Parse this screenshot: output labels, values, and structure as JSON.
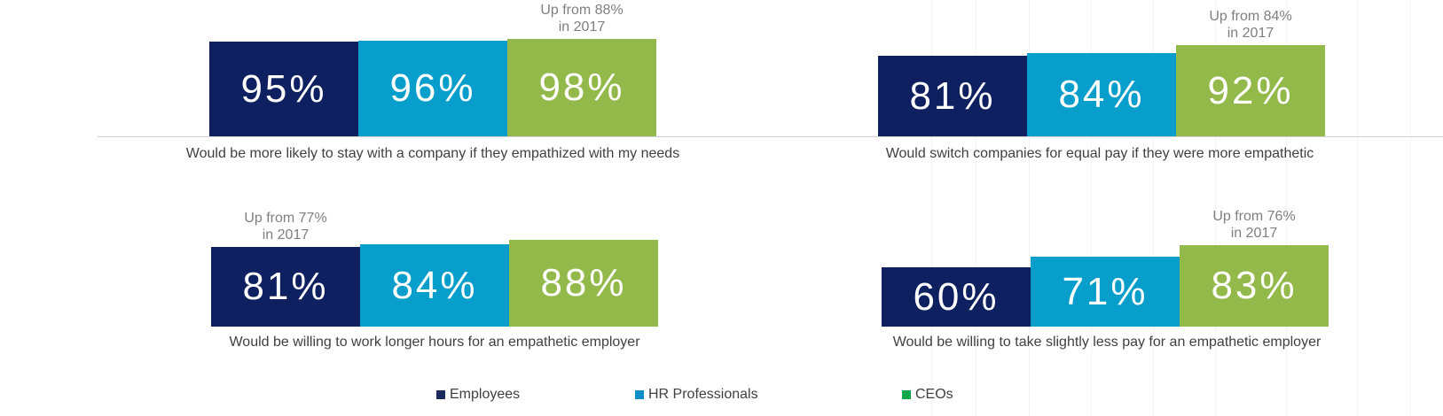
{
  "chart_data": [
    {
      "type": "bar",
      "caption": "Would be more likely to stay with a company if they empathized  with my needs",
      "categories": [
        "Employees",
        "HR Professionals",
        "CEOs"
      ],
      "values": [
        95,
        96,
        98
      ],
      "labels": [
        "95%",
        "96%",
        "98%"
      ],
      "annotation": {
        "bar": 2,
        "line1": "Up from 88%",
        "line2": "in 2017"
      }
    },
    {
      "type": "bar",
      "caption": "Would switch companies for equal pay if they were more  empathetic",
      "categories": [
        "Employees",
        "HR Professionals",
        "CEOs"
      ],
      "values": [
        81,
        84,
        92
      ],
      "labels": [
        "81%",
        "84%",
        "92%"
      ],
      "annotation": {
        "bar": 2,
        "line1": "Up from 84%",
        "line2": "in 2017"
      }
    },
    {
      "type": "bar",
      "caption": "Would be willing to work longer  hours for an empathetic employer",
      "categories": [
        "Employees",
        "HR Professionals",
        "CEOs"
      ],
      "values": [
        81,
        84,
        88
      ],
      "labels": [
        "81%",
        "84%",
        "88%"
      ],
      "annotation": {
        "bar": 0,
        "line1": "Up from 77%",
        "line2": "in 2017"
      }
    },
    {
      "type": "bar",
      "caption": "Would be willing to take slightly less  pay for an empathetic employer",
      "categories": [
        "Employees",
        "HR Professionals",
        "CEOs"
      ],
      "values": [
        60,
        71,
        83
      ],
      "labels": [
        "60%",
        "71%",
        "83%"
      ],
      "annotation": {
        "bar": 2,
        "line1": "Up from 76%",
        "line2": "in 2017"
      }
    }
  ],
  "legend": [
    {
      "label": "Employees",
      "color": "#1b2a5b"
    },
    {
      "label": "HR Professionals",
      "color": "#0c8fc9"
    },
    {
      "label": "CEOs",
      "color": "#10a84a"
    }
  ],
  "colors": {
    "employees": "#0e2060",
    "hr": "#079ecc",
    "ceos": "#92b949"
  }
}
